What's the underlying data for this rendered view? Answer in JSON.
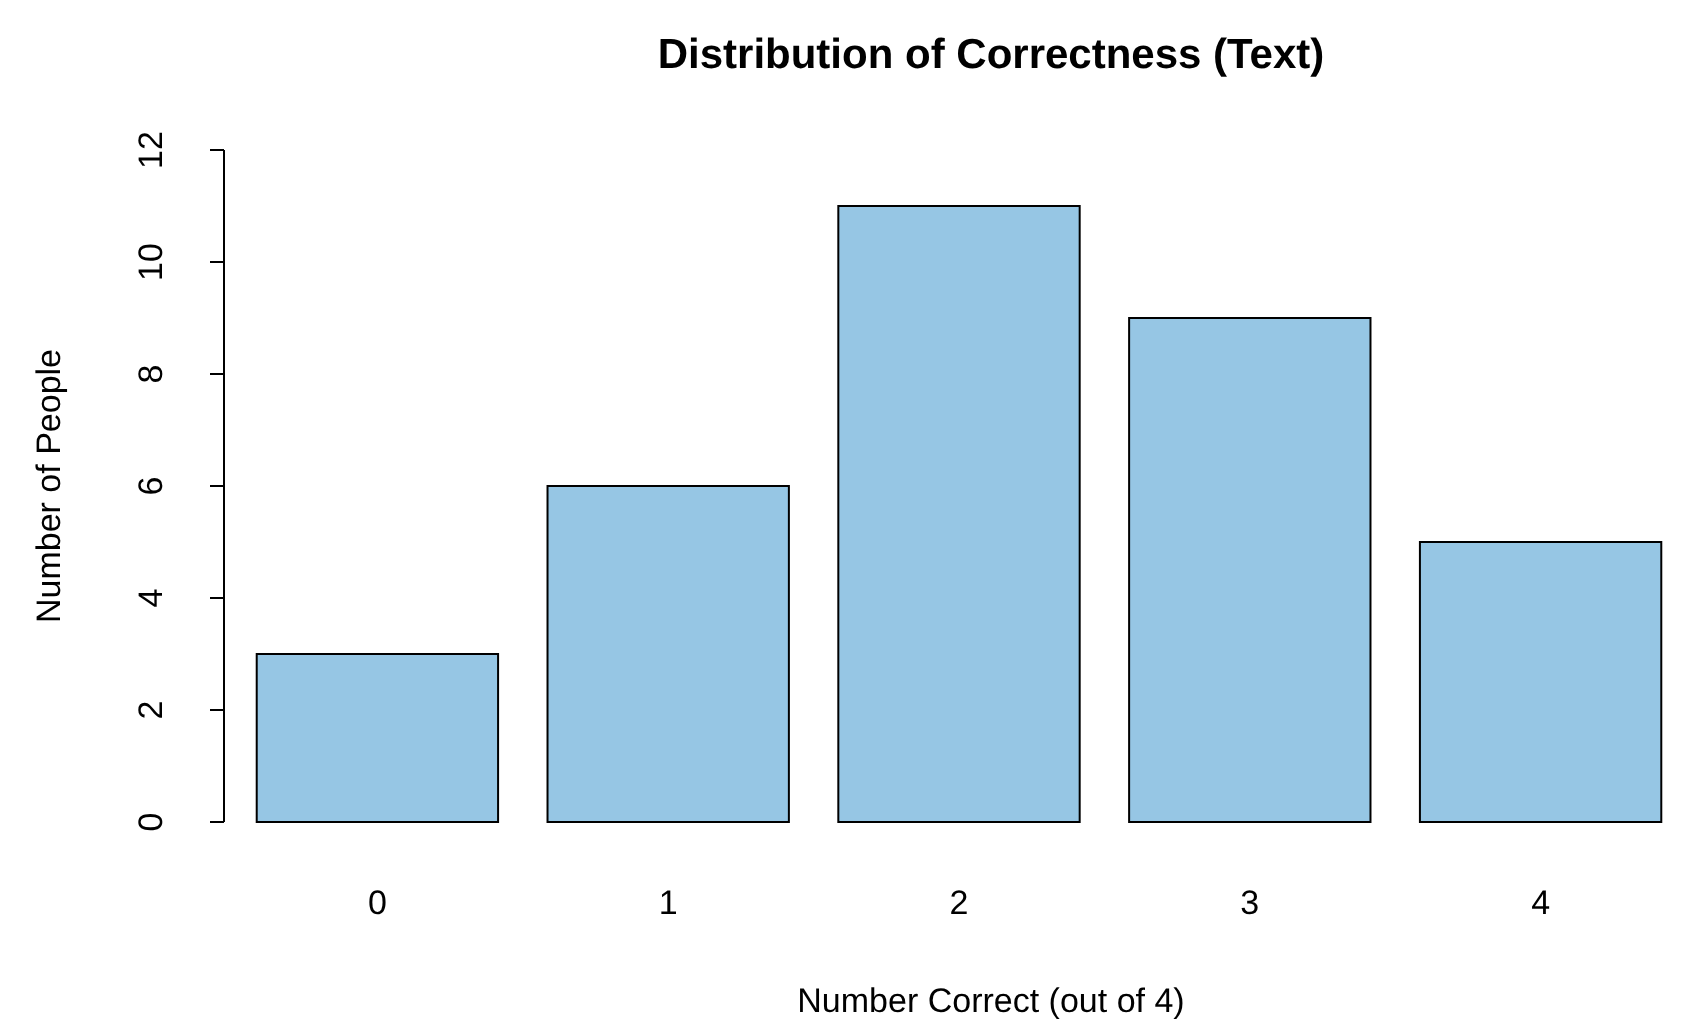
{
  "chart_data": {
    "type": "bar",
    "title": "Distribution of Correctness (Text)",
    "xlabel": "Number Correct (out of 4)",
    "ylabel": "Number of People",
    "categories": [
      "0",
      "1",
      "2",
      "3",
      "4"
    ],
    "values": [
      3,
      6,
      11,
      9,
      5
    ],
    "color": "#96c6e4",
    "ylim": [
      0,
      12
    ],
    "yticks": [
      0,
      2,
      4,
      6,
      8,
      10,
      12
    ],
    "grid": false
  }
}
